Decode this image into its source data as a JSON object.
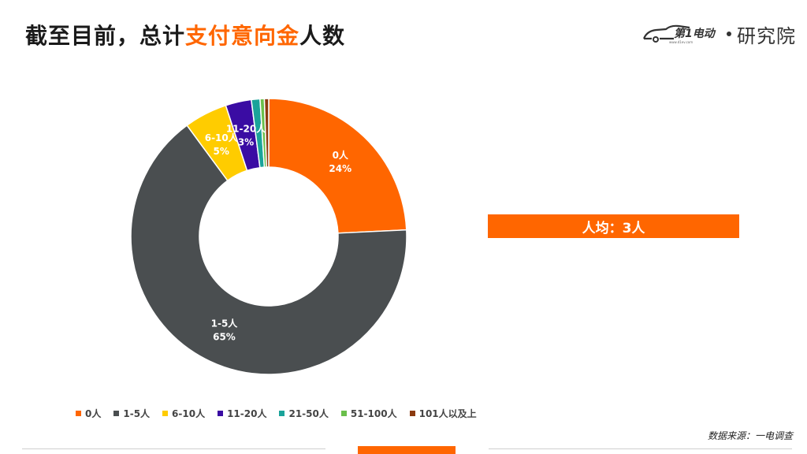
{
  "header": {
    "title_prefix": "截至目前，总计",
    "title_highlight": "支付意向金",
    "title_suffix": "人数",
    "logo_brand": "第1电动",
    "logo_sub": "研究院",
    "logo_url_text": "www.d1ev.com"
  },
  "average_label": "人均：3人",
  "source_text": "数据来源：一电调查",
  "colors": {
    "accent": "#ff6600",
    "text_dark": "#1a1a1a"
  },
  "chart_data": {
    "type": "pie",
    "donut": true,
    "legend_position": "bottom",
    "series": [
      {
        "name": "0人",
        "value": 24,
        "label": "24%",
        "color": "#ff6600"
      },
      {
        "name": "1-5人",
        "value": 65,
        "label": "65%",
        "color": "#4a4e50"
      },
      {
        "name": "6-10人",
        "value": 5,
        "label": "5%",
        "color": "#ffcc00"
      },
      {
        "name": "11-20人",
        "value": 3,
        "label": "3%",
        "color": "#3a0ca3"
      },
      {
        "name": "21-50人",
        "value": 1,
        "label": "",
        "color": "#1aa39a"
      },
      {
        "name": "51-100人",
        "value": 0.5,
        "label": "",
        "color": "#6abf4b"
      },
      {
        "name": "101人以及上",
        "value": 0.5,
        "label": "",
        "color": "#8b3a0f"
      }
    ]
  }
}
